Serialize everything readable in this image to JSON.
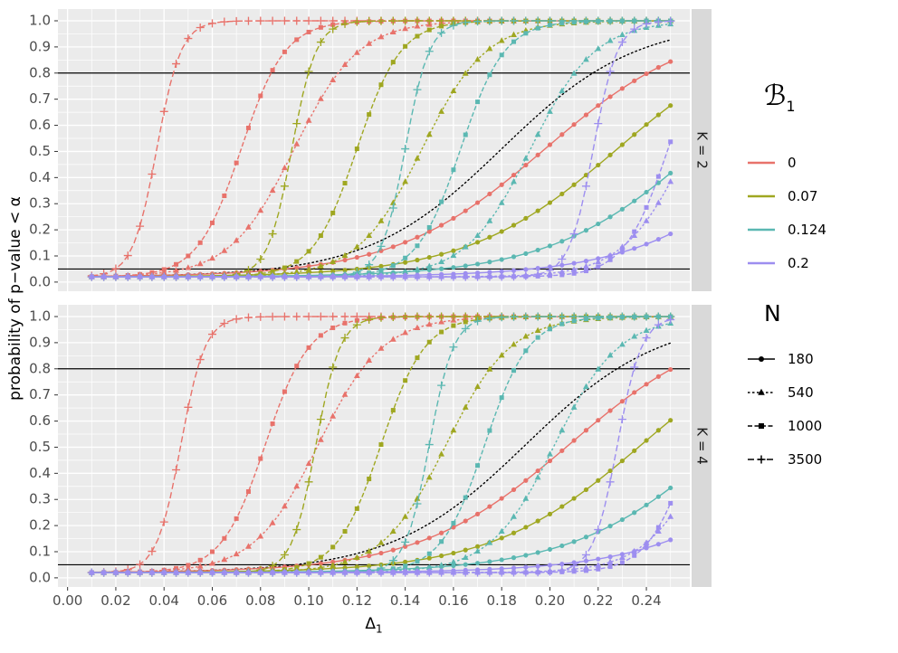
{
  "figure": {
    "ylabel": "probability of p−value < α",
    "xlabel_main": "Δ",
    "xlabel_sub": "1"
  },
  "legend": {
    "b1": {
      "title_main": "ℬ",
      "title_sub": "1",
      "entries": [
        {
          "label": "0",
          "color": "#e8726b"
        },
        {
          "label": "0.07",
          "color": "#9fa721"
        },
        {
          "label": "0.124",
          "color": "#5bb8b2"
        },
        {
          "label": "0.2",
          "color": "#9d8ef0"
        }
      ]
    },
    "n": {
      "title": "N",
      "entries": [
        {
          "label": "180",
          "shape": "circle",
          "dash": ""
        },
        {
          "label": "540",
          "shape": "triangle",
          "dash": "2.5 2.5"
        },
        {
          "label": "1000",
          "shape": "square",
          "dash": "5 2.5"
        },
        {
          "label": "3500",
          "shape": "plus",
          "dash": "7 3.5"
        }
      ]
    }
  },
  "chart_data": {
    "type": "line",
    "title": "",
    "xlabel": "Δ1",
    "ylabel": "probability of p−value < α",
    "facets": [
      {
        "key": "K2",
        "label": "K = 2"
      },
      {
        "key": "K4",
        "label": "K = 4"
      }
    ],
    "x_ticks": [
      0.0,
      0.02,
      0.04,
      0.06,
      0.08,
      0.1,
      0.12,
      0.14,
      0.16,
      0.18,
      0.2,
      0.22,
      0.24
    ],
    "x_tick_labels": [
      "0.00",
      "0.02",
      "0.04",
      "0.06",
      "0.08",
      "0.10",
      "0.12",
      "0.14",
      "0.16",
      "0.18",
      "0.20",
      "0.22",
      "0.24"
    ],
    "y_ticks": [
      0.0,
      0.1,
      0.2,
      0.3,
      0.4,
      0.5,
      0.6,
      0.7,
      0.8,
      0.9,
      1.0
    ],
    "y_tick_labels": [
      "0.0",
      "0.1",
      "0.2",
      "0.3",
      "0.4",
      "0.5",
      "0.6",
      "0.7",
      "0.8",
      "0.9",
      "1.0"
    ],
    "xlim": [
      -0.004,
      0.258
    ],
    "ylim": [
      -0.035,
      1.045
    ],
    "hlines": [
      0.8,
      0.05
    ],
    "panel_background": "#ebebeb",
    "strip_background": "#d9d9d9",
    "color_key": "B1",
    "shape_key": "N",
    "palette": {
      "0": "#e8726b",
      "0.07": "#9fa721",
      "0.124": "#5bb8b2",
      "0.2": "#9d8ef0"
    },
    "steepness_by_N": {
      "180": 32,
      "540": 75,
      "1000": 110,
      "3500": 200
    },
    "dash_by_N": {
      "180": "",
      "540": "2.5 2.5",
      "1000": "5 2.5",
      "3500": "7 3.5"
    },
    "shape_by_N": {
      "180": "circle",
      "540": "triangle",
      "1000": "square",
      "3500": "plus"
    },
    "curve_model": "y = 0.02 + 0.98 / (1 + exp(-k*(x - m)))",
    "x_range": {
      "start": 0.01,
      "end": 0.25,
      "marker_step": 0.005,
      "line_step": 0.0025
    },
    "reference": {
      "style": "black dotted",
      "K2": {
        "m": 0.18,
        "k": 36
      },
      "K4": {
        "m": 0.19,
        "k": 36
      }
    },
    "series": [
      {
        "B1": "0",
        "N": "180",
        "m": {
          "K2": 0.198,
          "K4": 0.208
        }
      },
      {
        "B1": "0",
        "N": "540",
        "m": {
          "K2": 0.094,
          "K4": 0.104
        }
      },
      {
        "B1": "0",
        "N": "1000",
        "m": {
          "K2": 0.072,
          "K4": 0.082
        }
      },
      {
        "B1": "0",
        "N": "3500",
        "m": {
          "K2": 0.037,
          "K4": 0.047
        }
      },
      {
        "B1": "0.07",
        "N": "180",
        "m": {
          "K2": 0.228,
          "K4": 0.238
        }
      },
      {
        "B1": "0.07",
        "N": "540",
        "m": {
          "K2": 0.147,
          "K4": 0.157
        }
      },
      {
        "B1": "0.07",
        "N": "1000",
        "m": {
          "K2": 0.12,
          "K4": 0.13
        }
      },
      {
        "B1": "0.07",
        "N": "3500",
        "m": {
          "K2": 0.093,
          "K4": 0.103
        }
      },
      {
        "B1": "0.124",
        "N": "180",
        "m": {
          "K2": 0.262,
          "K4": 0.272
        }
      },
      {
        "B1": "0.124",
        "N": "540",
        "m": {
          "K2": 0.192,
          "K4": 0.202
        }
      },
      {
        "B1": "0.124",
        "N": "1000",
        "m": {
          "K2": 0.163,
          "K4": 0.173
        }
      },
      {
        "B1": "0.124",
        "N": "3500",
        "m": {
          "K2": 0.14,
          "K4": 0.15
        }
      },
      {
        "B1": "0.2",
        "N": "180",
        "m": {
          "K2": 0.3,
          "K4": 0.31
        }
      },
      {
        "B1": "0.2",
        "N": "540",
        "m": {
          "K2": 0.257,
          "K4": 0.267
        }
      },
      {
        "B1": "0.2",
        "N": "1000",
        "m": {
          "K2": 0.249,
          "K4": 0.259
        }
      },
      {
        "B1": "0.2",
        "N": "3500",
        "m": {
          "K2": 0.218,
          "K4": 0.228
        }
      }
    ]
  }
}
